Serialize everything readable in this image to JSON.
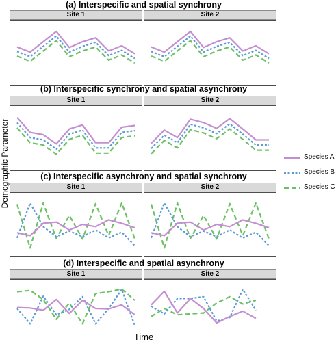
{
  "colors": {
    "Species A": "#c38fd1",
    "Species B": "#5b9bd5",
    "Species C": "#6cc164"
  },
  "axis": {
    "xlabel": "Time",
    "ylabel": "Demographic Parameter"
  },
  "legend": {
    "items": [
      "Species A",
      "Species B",
      "Species C"
    ],
    "placement": "right"
  },
  "chart_data": [
    {
      "type": "line",
      "title": "(a)   Interspecific and spatial synchrony",
      "ylim": [
        0,
        10
      ],
      "panels": [
        {
          "facet": "Site 1",
          "x": [
            1,
            2,
            3,
            4,
            5,
            6,
            7,
            8,
            9,
            10
          ],
          "series": [
            {
              "name": "Species A",
              "dash": "solid",
              "values": [
                6.0,
                5.1,
                6.9,
                8.7,
                5.9,
                6.9,
                7.6,
                5.3,
                6.2,
                4.8
              ]
            },
            {
              "name": "Species B",
              "dash": "dotted",
              "values": [
                5.2,
                4.3,
                6.1,
                7.9,
                5.1,
                6.1,
                6.8,
                4.5,
                5.4,
                4.0
              ]
            },
            {
              "name": "Species C",
              "dash": "dashed",
              "values": [
                4.4,
                3.5,
                5.3,
                7.1,
                4.3,
                5.3,
                6.0,
                3.7,
                4.6,
                3.2
              ]
            }
          ]
        },
        {
          "facet": "Site 2",
          "x": [
            1,
            2,
            3,
            4,
            5,
            6,
            7,
            8,
            9,
            10
          ],
          "series": [
            {
              "name": "Species A",
              "dash": "solid",
              "values": [
                6.0,
                5.1,
                6.9,
                8.7,
                5.9,
                6.9,
                7.6,
                5.3,
                6.2,
                4.8
              ]
            },
            {
              "name": "Species B",
              "dash": "dotted",
              "values": [
                5.2,
                4.3,
                6.1,
                7.9,
                5.1,
                6.1,
                6.8,
                4.5,
                5.4,
                4.0
              ]
            },
            {
              "name": "Species C",
              "dash": "dashed",
              "values": [
                4.4,
                3.5,
                5.3,
                7.1,
                4.3,
                5.3,
                6.0,
                3.7,
                4.6,
                3.2
              ]
            }
          ]
        }
      ]
    },
    {
      "type": "line",
      "title": "(b)  Interspecific synchrony and spatial asynchrony",
      "ylim": [
        0,
        10
      ],
      "panels": [
        {
          "facet": "Site 1",
          "x": [
            1,
            2,
            3,
            4,
            5,
            6,
            7,
            8,
            9,
            10
          ],
          "series": [
            {
              "name": "Species A",
              "dash": "solid",
              "values": [
                8.6,
                6.0,
                5.6,
                4.0,
                6.6,
                7.3,
                4.2,
                4.2,
                6.9,
                7.2
              ]
            },
            {
              "name": "Species B",
              "dash": "dotted",
              "values": [
                7.7,
                5.1,
                4.7,
                3.1,
                5.7,
                6.4,
                3.3,
                3.3,
                6.0,
                6.3
              ]
            },
            {
              "name": "Species C",
              "dash": "dashed",
              "values": [
                6.8,
                4.2,
                3.8,
                2.2,
                4.8,
                5.5,
                2.4,
                2.4,
                5.1,
                5.4
              ]
            }
          ]
        },
        {
          "facet": "Site 2",
          "x": [
            1,
            2,
            3,
            4,
            5,
            6,
            7,
            8,
            9,
            10
          ],
          "series": [
            {
              "name": "Species A",
              "dash": "solid",
              "values": [
                4.1,
                6.4,
                5.1,
                8.3,
                7.7,
                6.7,
                8.4,
                6.6,
                4.7,
                4.7
              ]
            },
            {
              "name": "Species B",
              "dash": "dotted",
              "values": [
                3.2,
                5.5,
                4.2,
                7.4,
                6.8,
                5.8,
                7.5,
                5.7,
                3.8,
                3.8
              ]
            },
            {
              "name": "Species C",
              "dash": "dashed",
              "values": [
                2.3,
                4.6,
                3.3,
                6.5,
                5.9,
                4.9,
                6.6,
                4.8,
                2.9,
                2.9
              ]
            }
          ]
        }
      ]
    },
    {
      "type": "line",
      "title": "(c)  Interspecific asynchrony and spatial synchrony",
      "ylim": [
        0,
        10
      ],
      "panels": [
        {
          "facet": "Site 1",
          "x": [
            1,
            2,
            3,
            4,
            5,
            6,
            7,
            8,
            9,
            10
          ],
          "series": [
            {
              "name": "Species A",
              "dash": "solid",
              "values": [
                3.5,
                3.0,
                5.2,
                5.4,
                4.0,
                5.0,
                4.6,
                5.8,
                5.2,
                4.4
              ]
            },
            {
              "name": "Species B",
              "dash": "dotted",
              "values": [
                2.6,
                8.8,
                4.6,
                2.8,
                3.8,
                2.8,
                4.0,
                2.6,
                3.6,
                1.2
              ]
            },
            {
              "name": "Species C",
              "dash": "dashed",
              "values": [
                8.6,
                0.8,
                8.8,
                2.5,
                6.6,
                2.4,
                8.7,
                3.0,
                8.8,
                2.4
              ]
            }
          ]
        },
        {
          "facet": "Site 2",
          "x": [
            1,
            2,
            3,
            4,
            5,
            6,
            7,
            8,
            9,
            10
          ],
          "series": [
            {
              "name": "Species A",
              "dash": "solid",
              "values": [
                3.5,
                3.0,
                5.2,
                5.4,
                4.0,
                5.0,
                4.6,
                5.8,
                5.2,
                4.4
              ]
            },
            {
              "name": "Species B",
              "dash": "dotted",
              "values": [
                2.6,
                8.8,
                4.6,
                2.8,
                3.8,
                2.8,
                4.0,
                2.6,
                3.6,
                1.2
              ]
            },
            {
              "name": "Species C",
              "dash": "dashed",
              "values": [
                8.6,
                0.8,
                8.8,
                2.5,
                6.6,
                2.4,
                8.7,
                3.0,
                8.8,
                2.4
              ]
            }
          ]
        }
      ]
    },
    {
      "type": "line",
      "title": "(d)  Interspecific and spatial asynchrony",
      "ylim": [
        0,
        10
      ],
      "panels": [
        {
          "facet": "Site 1",
          "x": [
            1,
            2,
            3,
            4,
            5,
            6,
            7,
            8,
            9,
            10
          ],
          "series": [
            {
              "name": "Species A",
              "dash": "solid",
              "values": [
                4.6,
                4.5,
                4.0,
                6.4,
                3.3,
                6.2,
                4.4,
                4.3,
                5.2,
                3.0
              ]
            },
            {
              "name": "Species B",
              "dash": "dotted",
              "values": [
                4.4,
                1.0,
                7.1,
                3.0,
                4.2,
                7.0,
                1.0,
                4.4,
                8.6,
                0.6
              ]
            },
            {
              "name": "Species C",
              "dash": "dashed",
              "values": [
                8.1,
                8.4,
                6.4,
                2.0,
                5.6,
                1.0,
                7.7,
                8.1,
                8.7,
                6.2
              ]
            }
          ]
        },
        {
          "facet": "Site 2",
          "x": [
            1,
            2,
            3,
            4,
            5,
            6,
            7,
            8,
            9,
            10
          ],
          "series": [
            {
              "name": "Species A",
              "dash": "solid",
              "values": [
                5.2,
                8.2,
                3.4,
                6.6,
                4.4,
                1.2,
                2.6,
                3.8,
                2.2,
                null
              ]
            },
            {
              "name": "Species B",
              "dash": "dotted",
              "values": [
                4.9,
                3.2,
                6.6,
                6.6,
                7.0,
                1.6,
                2.4,
                8.6,
                4.0,
                null
              ]
            },
            {
              "name": "Species C",
              "dash": "dashed",
              "values": [
                2.6,
                4.4,
                3.0,
                3.2,
                3.4,
                5.6,
                7.0,
                5.4,
                6.2,
                null
              ]
            }
          ]
        }
      ]
    }
  ]
}
